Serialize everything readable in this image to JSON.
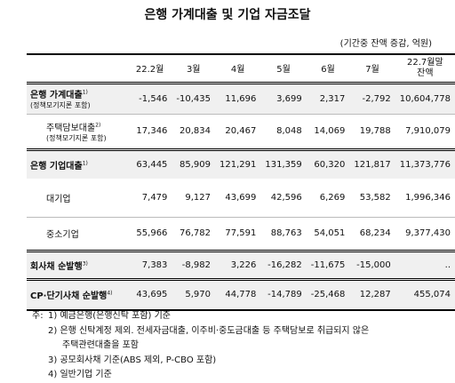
{
  "title": "은행 가계대출 및 기업 자금조달",
  "unit": "(기간중 잔액 증감, 억원)",
  "table": {
    "columns": [
      "22.2월",
      "3월",
      "4월",
      "5월",
      "6월",
      "7월"
    ],
    "balance_header": [
      "22.7월말",
      "잔액"
    ],
    "rows": [
      {
        "label": "은행 가계대출",
        "note": "1)",
        "sub": "(정책모기지론 포함)",
        "values": [
          "-1,546",
          "-10,435",
          "11,696",
          "3,699",
          "2,317",
          "-2,792",
          "10,604,778"
        ]
      },
      {
        "label": "주택담보대출",
        "note": "2)",
        "sub": "(정책모기지론 포함)",
        "values": [
          "17,346",
          "20,834",
          "20,467",
          "8,048",
          "14,069",
          "19,788",
          "7,910,079"
        ]
      },
      {
        "label": "은행 기업대출",
        "note": "1)",
        "values": [
          "63,445",
          "85,909",
          "121,291",
          "131,359",
          "60,320",
          "121,817",
          "11,373,776"
        ]
      },
      {
        "label": "대기업",
        "values": [
          "7,479",
          "9,127",
          "43,699",
          "42,596",
          "6,269",
          "53,582",
          "1,996,346"
        ]
      },
      {
        "label": "중소기업",
        "values": [
          "55,966",
          "76,782",
          "77,591",
          "88,763",
          "54,051",
          "68,234",
          "9,377,430"
        ]
      },
      {
        "label": "회사채 순발행",
        "note": "3)",
        "values": [
          "7,383",
          "-8,982",
          "3,226",
          "-16,282",
          "-11,675",
          "-15,000",
          ".."
        ]
      },
      {
        "label": "CP·단기사채 순발행",
        "note": "4)",
        "values": [
          "43,695",
          "5,970",
          "44,778",
          "-14,789",
          "-25,468",
          "12,287",
          "455,074"
        ]
      }
    ]
  },
  "notes": {
    "prefix": "주:",
    "lines": [
      "1) 예금은행(은행신탁 포함) 기준",
      "2) 은행 신탁계정 제외. 전세자금대출, 이주비·중도금대출 등 주택담보로 취급되지 않은",
      "주택관련대출을 포함",
      "3) 공모회사채 기준(ABS 제외, P-CBO 포함)",
      "4) 일반기업 기준"
    ]
  }
}
